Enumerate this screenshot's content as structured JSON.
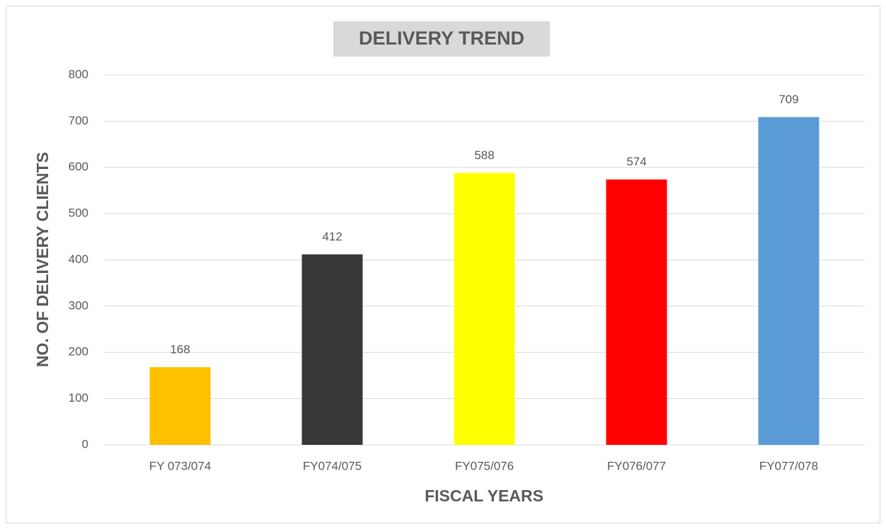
{
  "chart_data": {
    "type": "bar",
    "title": "DELIVERY TREND",
    "x_label": "FISCAL YEARS",
    "y_label": "NO. OF DELIVERY CLIENTS",
    "categories": [
      "FY 073/074",
      "FY074/075",
      "FY075/076",
      "FY076/077",
      "FY077/078"
    ],
    "values": [
      168,
      412,
      588,
      574,
      709
    ],
    "colors": [
      "#ffc000",
      "#3a3836",
      "#ffff00",
      "#ff0000",
      "#5b9bd5"
    ],
    "ylim": [
      0,
      800
    ],
    "yticks": [
      0,
      100,
      200,
      300,
      400,
      500,
      600,
      700,
      800
    ],
    "grid": true
  }
}
